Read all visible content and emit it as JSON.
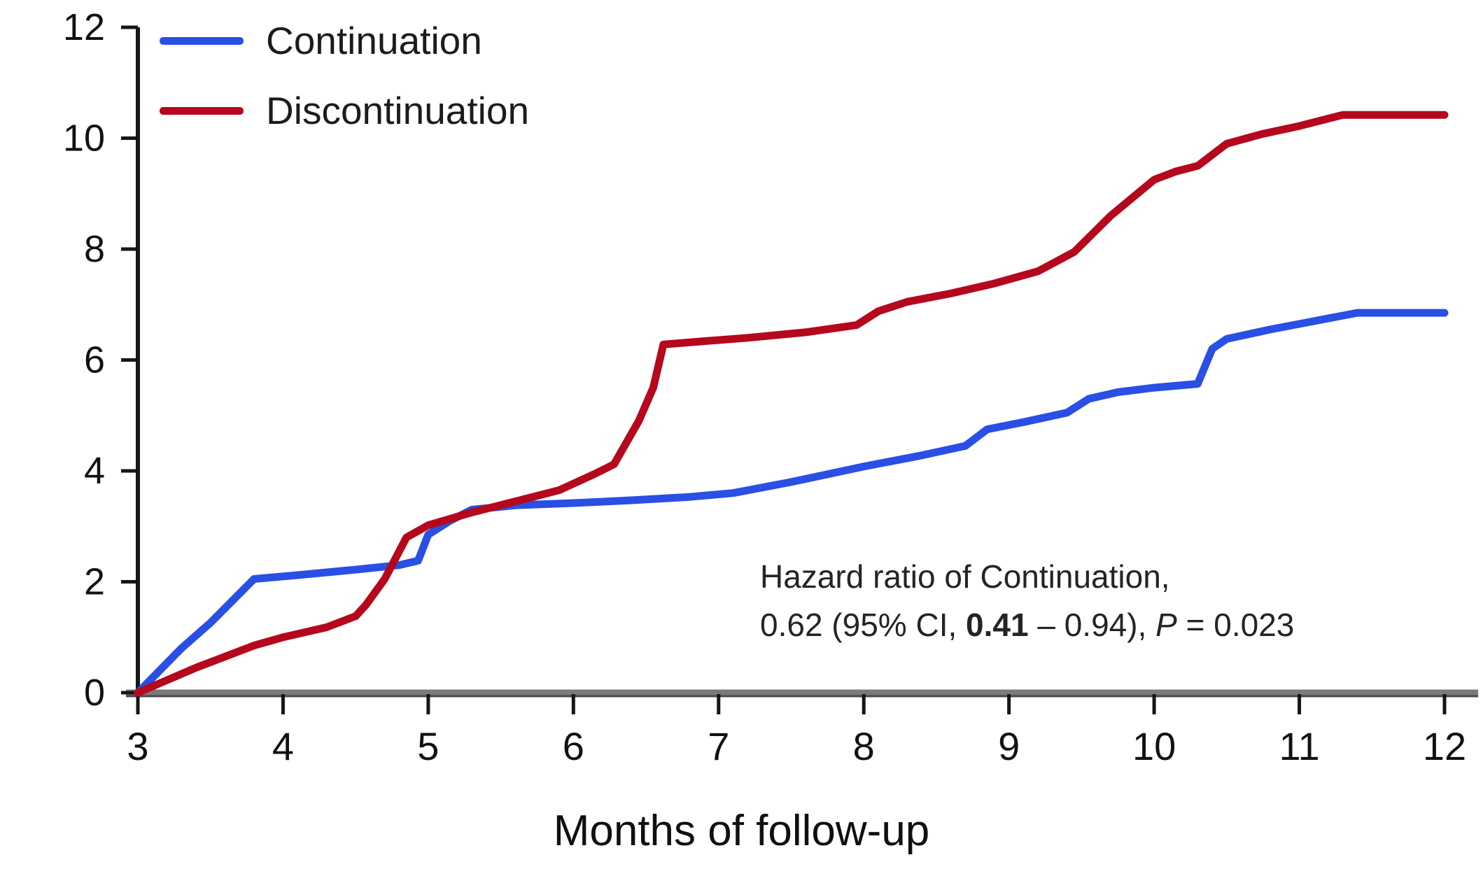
{
  "legend": {
    "items": [
      {
        "label": "Continuation",
        "color": "#2a4fe4"
      },
      {
        "label": "Discontinuation",
        "color": "#b5081c"
      }
    ]
  },
  "annotation": {
    "line1": "Hazard ratio of Continuation,",
    "line2_pre": "0.62 (95% CI, ",
    "line2_bold": "0.41",
    "line2_mid": " – 0.94), ",
    "line2_italic": "P",
    "line2_post": " = 0.023"
  },
  "chart_data": {
    "type": "line",
    "title": "",
    "xlabel": "Months of follow-up",
    "ylabel": "",
    "xlim": [
      3,
      12
    ],
    "ylim": [
      0,
      12
    ],
    "x_ticks": [
      3,
      4,
      5,
      6,
      7,
      8,
      9,
      10,
      11,
      12
    ],
    "y_ticks": [
      0,
      2,
      4,
      6,
      8,
      10,
      12
    ],
    "grid": false,
    "legend_position": "top-left",
    "annotation_text": "Hazard ratio of Continuation, 0.62 (95% CI, 0.41 – 0.94), P = 0.023",
    "series": [
      {
        "name": "Continuation",
        "color": "#2a4fe4",
        "points": [
          [
            3.0,
            0.0
          ],
          [
            3.3,
            0.8
          ],
          [
            3.5,
            1.26
          ],
          [
            3.8,
            2.05
          ],
          [
            4.1,
            2.12
          ],
          [
            4.5,
            2.22
          ],
          [
            4.8,
            2.3
          ],
          [
            4.93,
            2.38
          ],
          [
            5.0,
            2.85
          ],
          [
            5.15,
            3.1
          ],
          [
            5.3,
            3.3
          ],
          [
            5.6,
            3.38
          ],
          [
            6.0,
            3.42
          ],
          [
            6.4,
            3.47
          ],
          [
            6.8,
            3.53
          ],
          [
            7.1,
            3.6
          ],
          [
            7.5,
            3.8
          ],
          [
            8.0,
            4.08
          ],
          [
            8.4,
            4.28
          ],
          [
            8.7,
            4.45
          ],
          [
            8.85,
            4.75
          ],
          [
            9.1,
            4.88
          ],
          [
            9.4,
            5.05
          ],
          [
            9.55,
            5.3
          ],
          [
            9.75,
            5.42
          ],
          [
            10.0,
            5.5
          ],
          [
            10.3,
            5.57
          ],
          [
            10.4,
            6.2
          ],
          [
            10.5,
            6.38
          ],
          [
            10.8,
            6.55
          ],
          [
            11.1,
            6.7
          ],
          [
            11.4,
            6.85
          ],
          [
            12.0,
            6.85
          ]
        ]
      },
      {
        "name": "Discontinuation",
        "color": "#b5081c",
        "points": [
          [
            3.0,
            0.0
          ],
          [
            3.4,
            0.45
          ],
          [
            3.8,
            0.85
          ],
          [
            4.0,
            1.0
          ],
          [
            4.3,
            1.18
          ],
          [
            4.5,
            1.38
          ],
          [
            4.57,
            1.58
          ],
          [
            4.7,
            2.05
          ],
          [
            4.85,
            2.8
          ],
          [
            5.0,
            3.02
          ],
          [
            5.3,
            3.25
          ],
          [
            5.6,
            3.45
          ],
          [
            5.9,
            3.65
          ],
          [
            6.15,
            3.95
          ],
          [
            6.28,
            4.12
          ],
          [
            6.45,
            4.9
          ],
          [
            6.55,
            5.5
          ],
          [
            6.62,
            6.28
          ],
          [
            6.9,
            6.34
          ],
          [
            7.2,
            6.4
          ],
          [
            7.6,
            6.5
          ],
          [
            7.95,
            6.63
          ],
          [
            8.1,
            6.88
          ],
          [
            8.3,
            7.05
          ],
          [
            8.6,
            7.2
          ],
          [
            8.9,
            7.38
          ],
          [
            9.2,
            7.6
          ],
          [
            9.45,
            7.95
          ],
          [
            9.7,
            8.6
          ],
          [
            10.0,
            9.25
          ],
          [
            10.15,
            9.4
          ],
          [
            10.3,
            9.5
          ],
          [
            10.5,
            9.9
          ],
          [
            10.75,
            10.08
          ],
          [
            11.0,
            10.22
          ],
          [
            11.3,
            10.42
          ],
          [
            12.0,
            10.42
          ]
        ]
      }
    ]
  }
}
